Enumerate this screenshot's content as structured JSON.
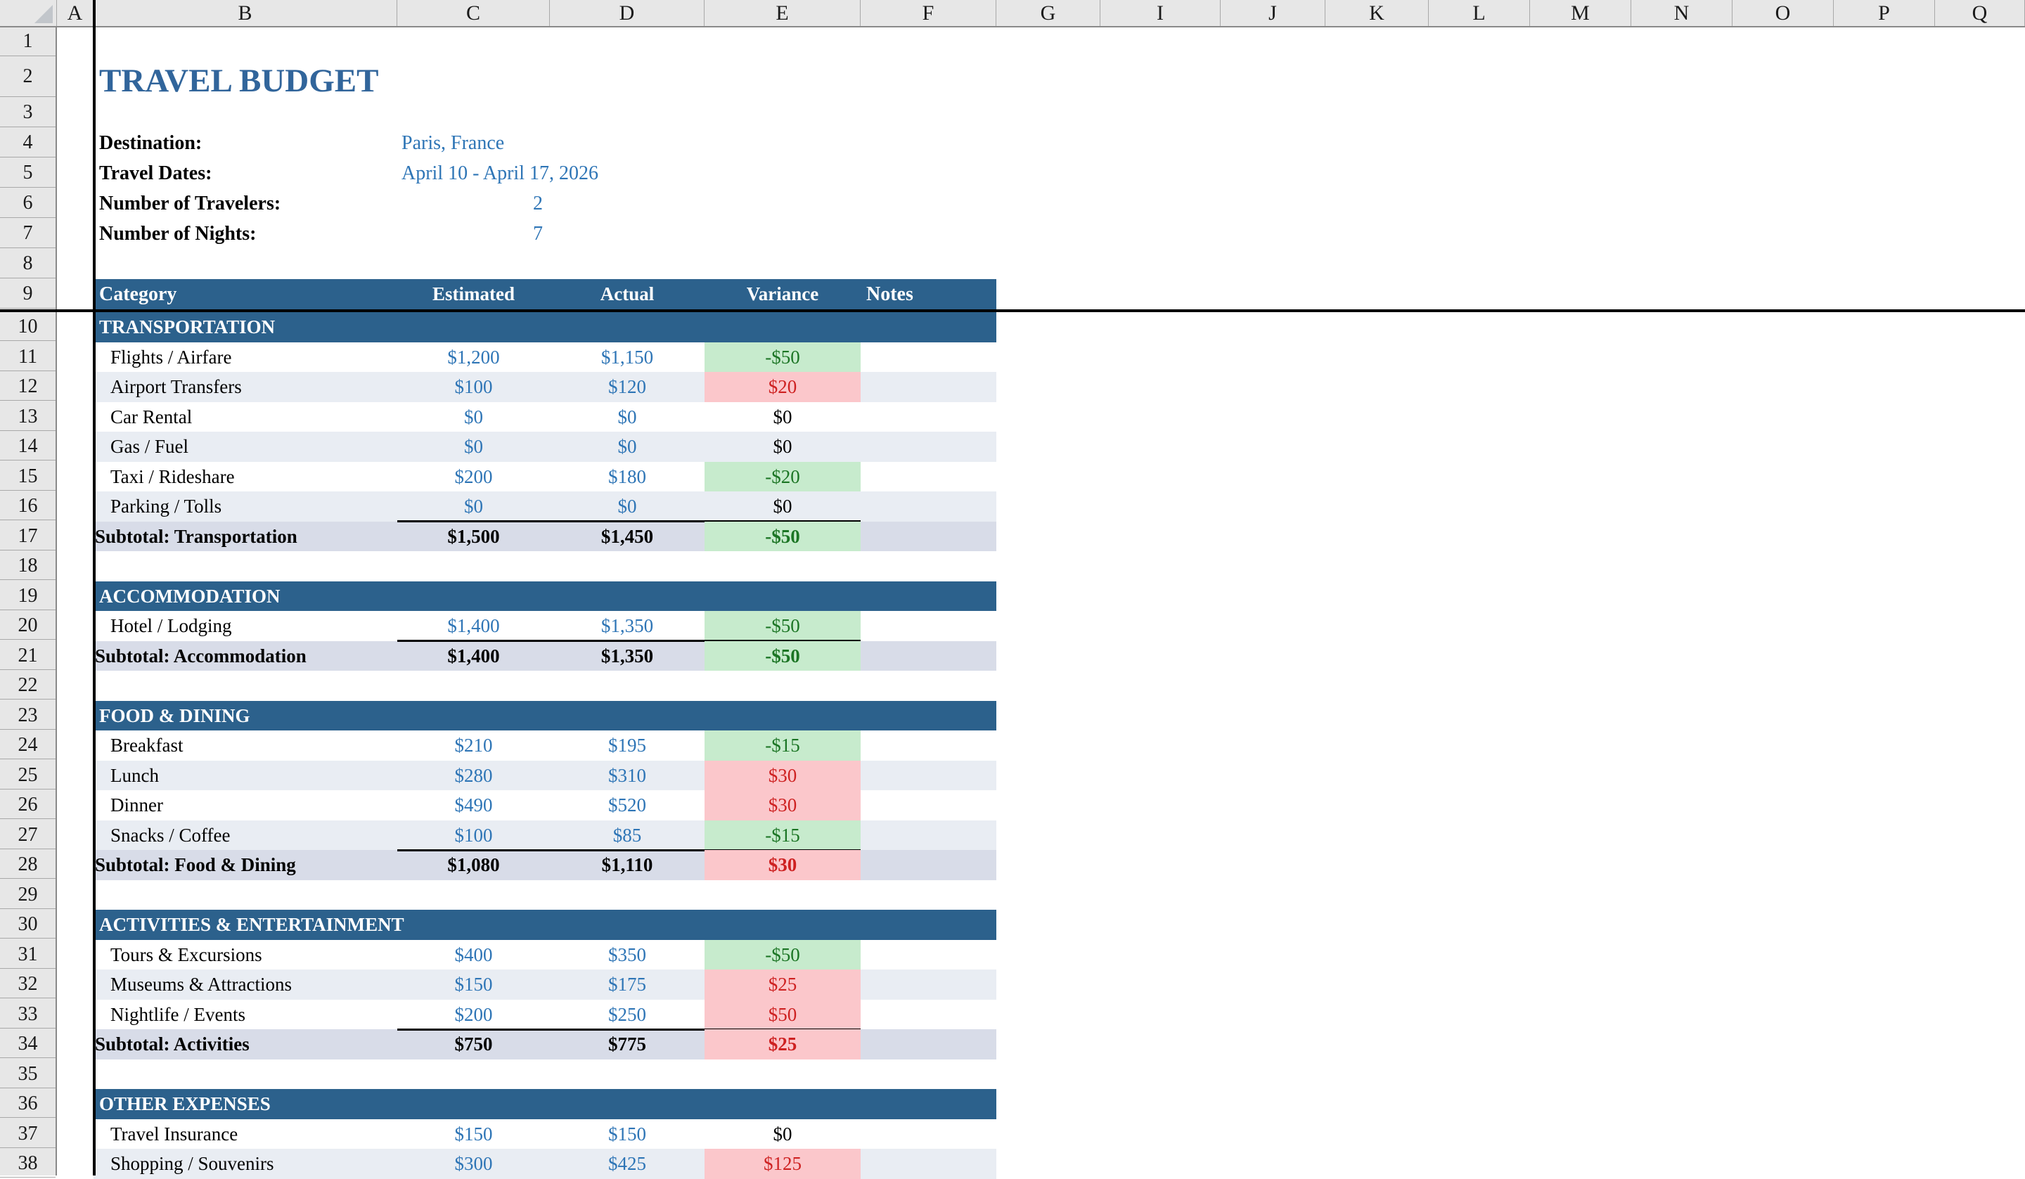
{
  "sheet": {
    "column_headers": [
      "A",
      "B",
      "C",
      "D",
      "E",
      "F",
      "G",
      "I",
      "J",
      "K",
      "L",
      "M",
      "N",
      "O",
      "P",
      "Q"
    ],
    "row_headers": [
      "1",
      "2",
      "3",
      "4",
      "5",
      "6",
      "7",
      "8",
      "9",
      "10",
      "11",
      "12",
      "13",
      "14",
      "15",
      "16",
      "17",
      "18",
      "19",
      "20",
      "21",
      "22",
      "23",
      "24",
      "25",
      "26",
      "27",
      "28",
      "29",
      "30",
      "31",
      "32",
      "33",
      "34",
      "35",
      "36",
      "37",
      "38"
    ],
    "title": "TRAVEL BUDGET",
    "info": [
      {
        "row": 4,
        "label": "Destination:",
        "value": "Paris, France",
        "align": "left"
      },
      {
        "row": 5,
        "label": "Travel Dates:",
        "value": "April 10 - April 17, 2026",
        "align": "left"
      },
      {
        "row": 6,
        "label": "Number of Travelers:",
        "value": "2",
        "align": "right"
      },
      {
        "row": 7,
        "label": "Number of Nights:",
        "value": "7",
        "align": "right"
      }
    ],
    "table": {
      "header": {
        "row": 9,
        "category": "Category",
        "estimated": "Estimated",
        "actual": "Actual",
        "variance": "Variance",
        "notes": "Notes"
      },
      "sections": [
        {
          "row": 10,
          "name": "TRANSPORTATION",
          "items": [
            {
              "row": 11,
              "label": "Flights / Airfare",
              "estimated": "$1,200",
              "actual": "$1,150",
              "variance": "-$50",
              "variance_state": "good"
            },
            {
              "row": 12,
              "label": "Airport Transfers",
              "estimated": "$100",
              "actual": "$120",
              "variance": "$20",
              "variance_state": "bad"
            },
            {
              "row": 13,
              "label": "Car Rental",
              "estimated": "$0",
              "actual": "$0",
              "variance": "$0",
              "variance_state": "zero"
            },
            {
              "row": 14,
              "label": "Gas / Fuel",
              "estimated": "$0",
              "actual": "$0",
              "variance": "$0",
              "variance_state": "zero"
            },
            {
              "row": 15,
              "label": "Taxi / Rideshare",
              "estimated": "$200",
              "actual": "$180",
              "variance": "-$20",
              "variance_state": "good"
            },
            {
              "row": 16,
              "label": "Parking / Tolls",
              "estimated": "$0",
              "actual": "$0",
              "variance": "$0",
              "variance_state": "zero"
            }
          ],
          "subtotal": {
            "row": 17,
            "label": "Subtotal: Transportation",
            "estimated": "$1,500",
            "actual": "$1,450",
            "variance": "-$50",
            "variance_state": "good"
          }
        },
        {
          "row": 19,
          "name": "ACCOMMODATION",
          "items": [
            {
              "row": 20,
              "label": "Hotel / Lodging",
              "estimated": "$1,400",
              "actual": "$1,350",
              "variance": "-$50",
              "variance_state": "good"
            }
          ],
          "subtotal": {
            "row": 21,
            "label": "Subtotal: Accommodation",
            "estimated": "$1,400",
            "actual": "$1,350",
            "variance": "-$50",
            "variance_state": "good"
          }
        },
        {
          "row": 23,
          "name": "FOOD & DINING",
          "items": [
            {
              "row": 24,
              "label": "Breakfast",
              "estimated": "$210",
              "actual": "$195",
              "variance": "-$15",
              "variance_state": "good"
            },
            {
              "row": 25,
              "label": "Lunch",
              "estimated": "$280",
              "actual": "$310",
              "variance": "$30",
              "variance_state": "bad"
            },
            {
              "row": 26,
              "label": "Dinner",
              "estimated": "$490",
              "actual": "$520",
              "variance": "$30",
              "variance_state": "bad"
            },
            {
              "row": 27,
              "label": "Snacks / Coffee",
              "estimated": "$100",
              "actual": "$85",
              "variance": "-$15",
              "variance_state": "good"
            }
          ],
          "subtotal": {
            "row": 28,
            "label": "Subtotal: Food & Dining",
            "estimated": "$1,080",
            "actual": "$1,110",
            "variance": "$30",
            "variance_state": "bad"
          }
        },
        {
          "row": 30,
          "name": "ACTIVITIES & ENTERTAINMENT",
          "items": [
            {
              "row": 31,
              "label": "Tours & Excursions",
              "estimated": "$400",
              "actual": "$350",
              "variance": "-$50",
              "variance_state": "good"
            },
            {
              "row": 32,
              "label": "Museums & Attractions",
              "estimated": "$150",
              "actual": "$175",
              "variance": "$25",
              "variance_state": "bad"
            },
            {
              "row": 33,
              "label": "Nightlife / Events",
              "estimated": "$200",
              "actual": "$250",
              "variance": "$50",
              "variance_state": "bad"
            }
          ],
          "subtotal": {
            "row": 34,
            "label": "Subtotal: Activities",
            "estimated": "$750",
            "actual": "$775",
            "variance": "$25",
            "variance_state": "bad"
          }
        },
        {
          "row": 36,
          "name": "OTHER EXPENSES",
          "items": [
            {
              "row": 37,
              "label": "Travel Insurance",
              "estimated": "$150",
              "actual": "$150",
              "variance": "$0",
              "variance_state": "zero"
            },
            {
              "row": 38,
              "label": "Shopping / Souvenirs",
              "estimated": "$300",
              "actual": "$425",
              "variance": "$125",
              "variance_state": "bad"
            }
          ],
          "subtotal": null
        }
      ]
    },
    "colors": {
      "header_blue": "#2C618C",
      "title_blue": "#31659B",
      "value_blue": "#2E75B6",
      "good_bg": "#C7EBCD",
      "good_text": "#1B7524",
      "bad_bg": "#FBC7CB",
      "bad_text": "#CE2121",
      "subtotal_bg": "#D8DCE8",
      "band_bg": "#E9EDF3",
      "chrome_bg": "#E7E7E7",
      "chrome_edge": "#8A8A8A",
      "grid_line": "#A9A9A9",
      "chrome_text": "#1A1A1A",
      "corner_tri": "#C2C6CB"
    }
  }
}
